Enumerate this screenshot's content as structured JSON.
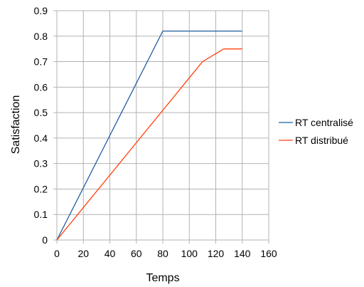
{
  "chart_data": {
    "type": "line",
    "title": "",
    "xlabel": "Temps",
    "ylabel": "Satisfaction",
    "xlim": [
      0,
      160
    ],
    "ylim": [
      0,
      0.9
    ],
    "xticks": [
      "0",
      "20",
      "40",
      "60",
      "80",
      "100",
      "120",
      "140",
      "160"
    ],
    "yticks": [
      "0",
      "0.1",
      "0.2",
      "0.3",
      "0.4",
      "0.5",
      "0.6",
      "0.7",
      "0.8",
      "0.9"
    ],
    "grid": true,
    "legend_position": "right",
    "series": [
      {
        "name": "RT centralisé",
        "color": "#1f5fa0",
        "points": [
          [
            0,
            0
          ],
          [
            80,
            0.82
          ],
          [
            140,
            0.82
          ]
        ]
      },
      {
        "name": "RT distribué",
        "color": "#ff420e",
        "points": [
          [
            0,
            0
          ],
          [
            110,
            0.7
          ],
          [
            126,
            0.75
          ],
          [
            140,
            0.75
          ]
        ]
      }
    ]
  }
}
